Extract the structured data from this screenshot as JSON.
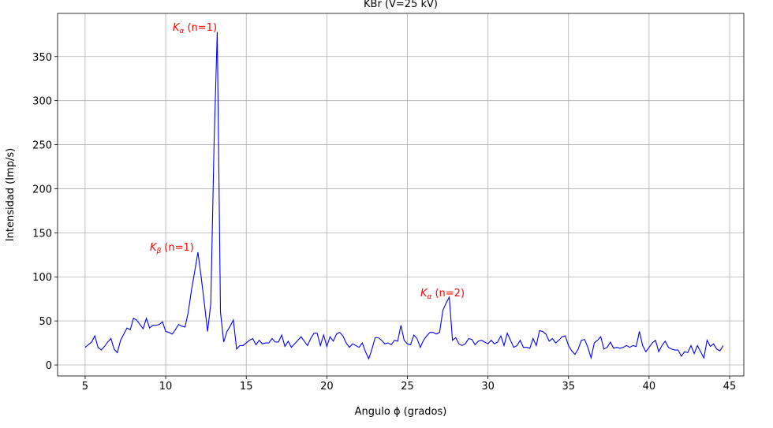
{
  "chart_data": {
    "type": "line",
    "title": "KBr (V=25 kV)",
    "x_label": "Angulo ϕ (grados)",
    "y_label": "Intensidad (Imp/s)",
    "x": [
      5.0,
      5.2,
      5.4,
      5.6,
      5.8,
      6.0,
      6.2,
      6.4,
      6.6,
      6.8,
      7.0,
      7.2,
      7.4,
      7.6,
      7.8,
      8.0,
      8.2,
      8.4,
      8.6,
      8.8,
      9.0,
      9.2,
      9.4,
      9.6,
      9.8,
      10.0,
      10.2,
      10.4,
      10.6,
      10.8,
      11.0,
      11.2,
      11.4,
      11.6,
      11.8,
      12.0,
      12.2,
      12.4,
      12.6,
      12.8,
      13.0,
      13.2,
      13.4,
      13.6,
      13.8,
      14.0,
      14.2,
      14.4,
      14.6,
      14.8,
      15.0,
      15.2,
      15.4,
      15.6,
      15.8,
      16.0,
      16.2,
      16.4,
      16.6,
      16.8,
      17.0,
      17.2,
      17.4,
      17.6,
      17.8,
      18.0,
      18.2,
      18.4,
      18.6,
      18.8,
      19.0,
      19.2,
      19.4,
      19.6,
      19.8,
      20.0,
      20.2,
      20.4,
      20.6,
      20.8,
      21.0,
      21.2,
      21.4,
      21.6,
      21.8,
      22.0,
      22.2,
      22.4,
      22.6,
      22.8,
      23.0,
      23.2,
      23.4,
      23.6,
      23.8,
      24.0,
      24.2,
      24.4,
      24.6,
      24.8,
      25.0,
      25.2,
      25.4,
      25.6,
      25.8,
      26.0,
      26.2,
      26.4,
      26.6,
      26.8,
      27.0,
      27.2,
      27.4,
      27.6,
      27.8,
      28.0,
      28.2,
      28.4,
      28.6,
      28.8,
      29.0,
      29.2,
      29.4,
      29.6,
      29.8,
      30.0,
      30.2,
      30.4,
      30.6,
      30.8,
      31.0,
      31.2,
      31.4,
      31.6,
      31.8,
      32.0,
      32.2,
      32.4,
      32.6,
      32.8,
      33.0,
      33.2,
      33.4,
      33.6,
      33.8,
      34.0,
      34.2,
      34.4,
      34.6,
      34.8,
      35.0,
      35.2,
      35.4,
      35.6,
      35.8,
      36.0,
      36.2,
      36.4,
      36.6,
      36.8,
      37.0,
      37.2,
      37.4,
      37.6,
      37.8,
      38.0,
      38.2,
      38.4,
      38.6,
      38.8,
      39.0,
      39.2,
      39.4,
      39.6,
      39.8,
      40.0,
      40.2,
      40.4,
      40.6,
      40.8,
      41.0,
      41.2,
      41.4,
      41.6,
      41.8,
      42.0,
      42.2,
      42.4,
      42.6,
      42.8,
      43.0,
      43.2,
      43.4,
      43.6,
      43.8,
      44.0,
      44.2,
      44.4,
      44.6
    ],
    "series": [
      {
        "color": "#0000ff",
        "values": [
          20,
          23,
          26,
          33,
          20,
          17,
          21,
          26,
          30,
          18,
          14,
          28,
          35,
          42,
          40,
          53,
          51,
          46,
          41,
          53,
          42,
          45,
          45,
          46,
          49,
          38,
          37,
          35,
          40,
          46,
          44,
          43,
          60,
          85,
          106,
          128,
          100,
          70,
          38,
          70,
          250,
          378,
          60,
          26,
          38,
          44,
          51,
          18,
          22,
          22,
          25,
          28,
          30,
          23,
          28,
          24,
          25,
          25,
          30,
          26,
          26,
          34,
          21,
          27,
          20,
          24,
          28,
          32,
          27,
          22,
          30,
          36,
          36,
          22,
          34,
          21,
          32,
          27,
          35,
          37,
          33,
          25,
          20,
          24,
          22,
          20,
          25,
          15,
          7,
          18,
          31,
          31,
          28,
          24,
          25,
          23,
          28,
          27,
          45,
          28,
          24,
          23,
          34,
          30,
          20,
          28,
          33,
          37,
          37,
          35,
          37,
          62,
          70,
          77,
          28,
          31,
          24,
          22,
          24,
          30,
          29,
          23,
          27,
          28,
          26,
          24,
          28,
          24,
          26,
          33,
          22,
          36,
          28,
          20,
          22,
          28,
          20,
          20,
          19,
          30,
          22,
          39,
          38,
          35,
          27,
          30,
          25,
          28,
          32,
          33,
          22,
          16,
          12,
          18,
          28,
          29,
          20,
          8,
          25,
          28,
          32,
          18,
          20,
          26,
          19,
          20,
          19,
          20,
          22,
          20,
          22,
          21,
          38,
          22,
          15,
          20,
          25,
          28,
          15,
          22,
          27,
          20,
          18,
          17,
          17,
          10,
          15,
          14,
          22,
          13,
          22,
          15,
          8,
          28,
          21,
          24,
          18,
          16,
          22
        ]
      }
    ],
    "annotations": [
      {
        "base": "K",
        "sub": "α",
        "text": "(n=1)"
      },
      {
        "base": "K",
        "sub": "β",
        "text": "(n=1)"
      },
      {
        "base": "K",
        "sub": "α",
        "text": "(n=2)"
      }
    ],
    "annotation_color": "#ff0000",
    "xlim": [
      3.29,
      45.88
    ],
    "ylim": [
      -12.5,
      399
    ],
    "xticks": [
      5,
      10,
      15,
      20,
      25,
      30,
      35,
      40,
      45
    ],
    "yticks": [
      0,
      50,
      100,
      150,
      200,
      250,
      300,
      350
    ],
    "grid": true
  }
}
